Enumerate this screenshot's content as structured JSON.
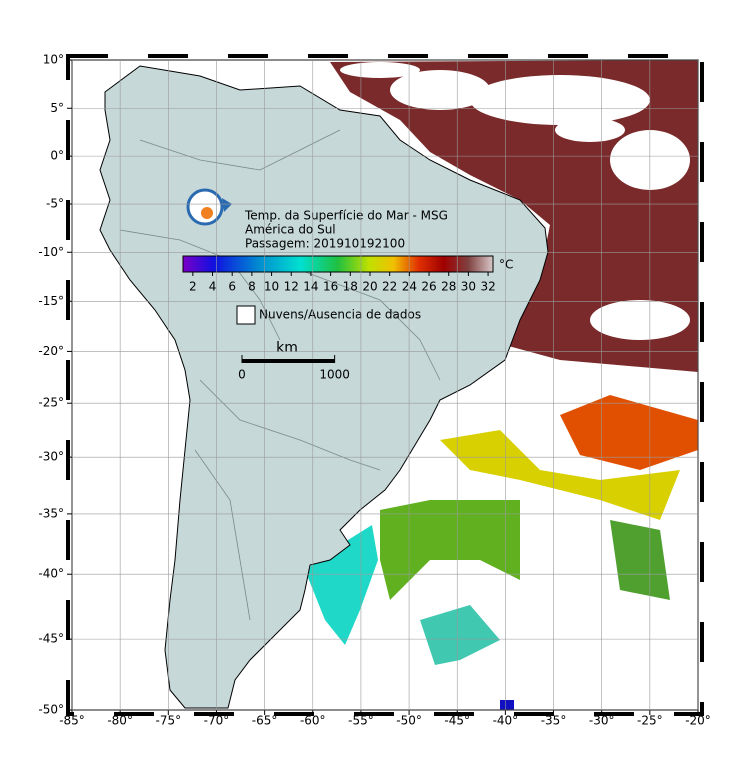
{
  "map": {
    "xlim": [
      -85,
      -20
    ],
    "ylim": [
      -50,
      10
    ],
    "xticks": [
      {
        "value": -85,
        "label": "-85°"
      },
      {
        "value": -80,
        "label": "-80°"
      },
      {
        "value": -75,
        "label": "-75°"
      },
      {
        "value": -70,
        "label": "-70°"
      },
      {
        "value": -65,
        "label": "-65°"
      },
      {
        "value": -60,
        "label": "-60°"
      },
      {
        "value": -55,
        "label": "-55°"
      },
      {
        "value": -50,
        "label": "-50°"
      },
      {
        "value": -45,
        "label": "-45°"
      },
      {
        "value": -40,
        "label": "-40°"
      },
      {
        "value": -35,
        "label": "-35°"
      },
      {
        "value": -30,
        "label": "-30°"
      },
      {
        "value": -25,
        "label": "-25°"
      },
      {
        "value": -20,
        "label": "-20°"
      }
    ],
    "yticks": [
      {
        "value": 10,
        "label": "10°"
      },
      {
        "value": 5,
        "label": "5°"
      },
      {
        "value": 0,
        "label": "0°"
      },
      {
        "value": -5,
        "label": "-5°"
      },
      {
        "value": -10,
        "label": "-10°"
      },
      {
        "value": -15,
        "label": "-15°"
      },
      {
        "value": -20,
        "label": "-20°"
      },
      {
        "value": -25,
        "label": "-25°"
      },
      {
        "value": -30,
        "label": "-30°"
      },
      {
        "value": -35,
        "label": "-35°"
      },
      {
        "value": -40,
        "label": "-40°"
      },
      {
        "value": -45,
        "label": "-45°"
      },
      {
        "value": -50,
        "label": "-50°"
      }
    ]
  },
  "legend": {
    "title": "Temp. da Superfície do Mar - MSG",
    "subtitle": "América do Sul",
    "pass": "Passagem: 201910192100",
    "colorbar": {
      "lim": [
        1,
        32.5
      ],
      "ticks": [
        2,
        4,
        6,
        8,
        10,
        12,
        14,
        16,
        18,
        20,
        22,
        24,
        26,
        28,
        30,
        32
      ],
      "unit": "°C"
    },
    "no_data_label": "Nuvens/Ausencia de dados"
  },
  "scalebar": {
    "unit": "km",
    "ticks": [
      0,
      1000
    ]
  }
}
